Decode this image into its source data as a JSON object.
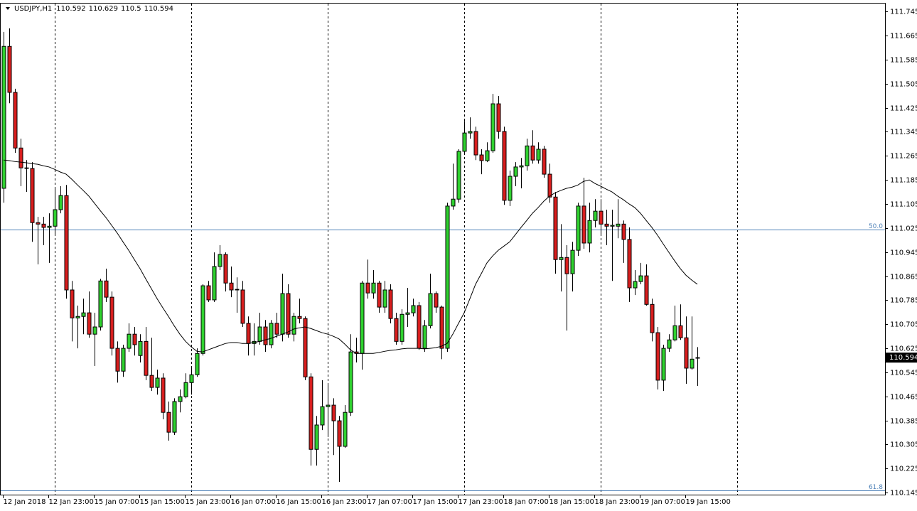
{
  "chart_data": {
    "type": "candlestick",
    "symbol": "USDJPY,H1",
    "categories": [
      "12 Jan 2018",
      null,
      null,
      null,
      null,
      null,
      null,
      null,
      "12 Jan 23:00",
      null,
      null,
      null,
      null,
      null,
      null,
      null,
      "15 Jan 07:00",
      null,
      null,
      null,
      null,
      null,
      null,
      null,
      "15 Jan 15:00",
      null,
      null,
      null,
      null,
      null,
      null,
      null,
      "15 Jan 23:00",
      null,
      null,
      null,
      null,
      null,
      null,
      null,
      "16 Jan 07:00",
      null,
      null,
      null,
      null,
      null,
      null,
      null,
      "16 Jan 15:00",
      null,
      null,
      null,
      null,
      null,
      null,
      null,
      "16 Jan 23:00",
      null,
      null,
      null,
      null,
      null,
      null,
      null,
      "17 Jan 07:00",
      null,
      null,
      null,
      null,
      null,
      null,
      null,
      "17 Jan 15:00",
      null,
      null,
      null,
      null,
      null,
      null,
      null,
      "17 Jan 23:00",
      null,
      null,
      null,
      null,
      null,
      null,
      null,
      "18 Jan 07:00",
      null,
      null,
      null,
      null,
      null,
      null,
      null,
      "18 Jan 15:00",
      null,
      null,
      null,
      null,
      null,
      null,
      null,
      "18 Jan 23:00",
      null,
      null,
      null,
      null,
      null,
      null,
      null,
      "19 Jan 07:00",
      null,
      null,
      null,
      null,
      null,
      null,
      null,
      "19 Jan 15:00",
      null,
      null
    ],
    "open": [
      111.157,
      111.629,
      111.476,
      111.291,
      111.225,
      111.223,
      111.043,
      111.038,
      111.027,
      111.031,
      111.086,
      111.133,
      110.819,
      110.726,
      110.731,
      110.743,
      110.672,
      110.696,
      110.849,
      110.795,
      110.625,
      110.549,
      110.625,
      110.672,
      110.601,
      110.648,
      110.535,
      110.495,
      110.526,
      110.412,
      110.346,
      110.448,
      110.464,
      110.511,
      110.537,
      110.608,
      110.833,
      110.786,
      110.897,
      110.937,
      110.842,
      110.819,
      110.819,
      110.708,
      110.641,
      110.648,
      110.696,
      110.637,
      110.708,
      110.672,
      110.807,
      110.672,
      110.731,
      110.724,
      110.53,
      110.289,
      110.37,
      110.431,
      110.436,
      110.384,
      110.299,
      110.412,
      110.613,
      110.608,
      110.842,
      110.809,
      110.842,
      110.762,
      110.819,
      110.724,
      110.648,
      110.738,
      110.743,
      110.767,
      110.625,
      110.7,
      110.807,
      110.762,
      110.625,
      111.098,
      111.121,
      111.28,
      111.341,
      111.346,
      111.268,
      111.249,
      111.282,
      111.438,
      111.346,
      111.117,
      111.197,
      111.228,
      111.232,
      111.298,
      111.251,
      111.287,
      111.204,
      111.128,
      110.92,
      110.927,
      110.873,
      110.951,
      111.098,
      110.975,
      111.05,
      111.081,
      111.038,
      111.031,
      111.031,
      111.038,
      110.987,
      110.826,
      110.847,
      110.866,
      110.771,
      110.677,
      110.519,
      110.625,
      110.653,
      110.7,
      110.66,
      110.559,
      110.592
    ],
    "high": [
      111.677,
      111.689,
      111.488,
      111.322,
      111.251,
      111.244,
      111.062,
      111.062,
      111.074,
      111.157,
      111.164,
      111.168,
      110.849,
      110.767,
      110.79,
      110.814,
      110.743,
      110.856,
      110.89,
      110.814,
      110.648,
      110.637,
      110.708,
      110.696,
      110.672,
      110.696,
      110.66,
      110.554,
      110.542,
      110.448,
      110.459,
      110.488,
      110.542,
      110.559,
      110.625,
      110.838,
      110.849,
      110.944,
      110.968,
      110.944,
      110.897,
      110.861,
      110.849,
      110.731,
      110.708,
      110.743,
      110.719,
      110.719,
      110.743,
      110.873,
      110.838,
      110.743,
      110.79,
      110.731,
      110.542,
      110.4,
      110.519,
      110.507,
      110.459,
      110.4,
      110.436,
      110.672,
      110.66,
      110.849,
      110.92,
      110.885,
      110.849,
      110.849,
      110.838,
      110.743,
      110.755,
      110.826,
      110.79,
      110.779,
      110.719,
      110.873,
      110.814,
      110.767,
      111.109,
      111.239,
      111.287,
      111.381,
      111.393,
      111.362,
      111.287,
      111.31,
      111.471,
      111.464,
      111.362,
      111.216,
      111.244,
      111.258,
      111.322,
      111.35,
      111.31,
      111.298,
      111.239,
      111.145,
      111.038,
      110.968,
      110.979,
      111.109,
      111.192,
      111.109,
      111.121,
      111.121,
      111.086,
      111.086,
      111.121,
      111.05,
      111.027,
      110.885,
      110.909,
      110.904,
      110.79,
      110.696,
      110.637,
      110.672,
      110.767,
      110.771,
      110.731,
      110.731,
      110.629
    ],
    "low": [
      111.109,
      111.44,
      111.275,
      111.164,
      111.145,
      110.979,
      110.904,
      110.968,
      110.909,
      111.003,
      111.074,
      110.79,
      110.648,
      110.625,
      110.672,
      110.66,
      110.566,
      110.684,
      110.779,
      110.601,
      110.511,
      110.53,
      110.613,
      110.601,
      110.578,
      110.519,
      110.483,
      110.471,
      110.389,
      110.318,
      110.337,
      110.412,
      110.459,
      110.471,
      110.53,
      110.601,
      110.779,
      110.779,
      110.885,
      110.814,
      110.795,
      110.743,
      110.696,
      110.601,
      110.601,
      110.637,
      110.613,
      110.625,
      110.66,
      110.648,
      110.66,
      110.648,
      110.708,
      110.519,
      110.235,
      110.235,
      110.353,
      110.33,
      110.27,
      110.181,
      110.294,
      110.4,
      110.578,
      110.554,
      110.79,
      110.79,
      110.743,
      110.743,
      110.708,
      110.637,
      110.637,
      110.696,
      110.731,
      110.62,
      110.613,
      110.691,
      110.743,
      110.589,
      110.613,
      111.086,
      111.109,
      111.268,
      111.322,
      111.251,
      111.204,
      111.244,
      111.275,
      111.322,
      111.102,
      111.098,
      111.164,
      111.157,
      111.216,
      111.239,
      111.239,
      111.192,
      111.109,
      110.873,
      110.814,
      110.684,
      110.814,
      110.932,
      110.956,
      110.944,
      111.027,
      111.003,
      110.968,
      110.849,
      110.991,
      110.909,
      110.779,
      110.802,
      110.838,
      110.767,
      110.648,
      110.488,
      110.483,
      110.613,
      110.648,
      110.653,
      110.507,
      110.554,
      110.5
    ],
    "close": [
      111.629,
      111.476,
      111.291,
      111.225,
      111.223,
      111.043,
      111.038,
      111.027,
      111.031,
      111.086,
      111.133,
      110.819,
      110.726,
      110.731,
      110.743,
      110.672,
      110.696,
      110.849,
      110.795,
      110.625,
      110.549,
      110.625,
      110.672,
      110.637,
      110.648,
      110.535,
      110.495,
      110.526,
      110.412,
      110.346,
      110.448,
      110.464,
      110.511,
      110.537,
      110.608,
      110.833,
      110.786,
      110.897,
      110.937,
      110.842,
      110.819,
      110.821,
      110.708,
      110.641,
      110.648,
      110.696,
      110.637,
      110.708,
      110.672,
      110.807,
      110.672,
      110.731,
      110.724,
      110.53,
      110.289,
      110.37,
      110.431,
      110.436,
      110.384,
      110.299,
      110.412,
      110.613,
      110.608,
      110.842,
      110.809,
      110.842,
      110.762,
      110.819,
      110.724,
      110.648,
      110.738,
      110.743,
      110.767,
      110.625,
      110.7,
      110.807,
      110.762,
      110.625,
      111.098,
      111.121,
      111.28,
      111.341,
      111.346,
      111.268,
      111.249,
      111.282,
      111.438,
      111.346,
      111.117,
      111.197,
      111.228,
      111.232,
      111.298,
      111.251,
      111.287,
      111.204,
      111.128,
      110.92,
      110.927,
      110.873,
      110.951,
      111.098,
      110.975,
      111.05,
      111.081,
      111.038,
      111.031,
      111.034,
      111.038,
      110.987,
      110.826,
      110.847,
      110.866,
      110.771,
      110.677,
      110.519,
      110.625,
      110.653,
      110.7,
      110.66,
      110.559,
      110.589,
      110.594
    ],
    "up_color": "#2fd12f",
    "down_color": "#d81e1e",
    "outline_color": "#000000",
    "moving_average": {
      "color": "#000000",
      "values": [
        111.251,
        111.249,
        111.246,
        111.244,
        111.242,
        111.239,
        111.237,
        111.232,
        111.228,
        111.22,
        111.211,
        111.204,
        111.187,
        111.168,
        111.15,
        111.131,
        111.107,
        111.083,
        111.06,
        111.034,
        111.008,
        110.979,
        110.951,
        110.92,
        110.89,
        110.856,
        110.823,
        110.79,
        110.76,
        110.731,
        110.7,
        110.672,
        110.648,
        110.63,
        110.615,
        110.613,
        110.62,
        110.627,
        110.634,
        110.641,
        110.644,
        110.644,
        110.641,
        110.641,
        110.644,
        110.648,
        110.653,
        110.658,
        110.665,
        110.672,
        110.679,
        110.689,
        110.693,
        110.696,
        110.691,
        110.684,
        110.677,
        110.672,
        110.665,
        110.656,
        110.639,
        110.62,
        110.608,
        110.608,
        110.608,
        110.608,
        110.611,
        110.615,
        110.618,
        110.62,
        110.623,
        110.625,
        110.625,
        110.625,
        110.623,
        110.625,
        110.627,
        110.632,
        110.641,
        110.672,
        110.708,
        110.743,
        110.79,
        110.838,
        110.873,
        110.909,
        110.932,
        110.951,
        110.965,
        110.979,
        111.003,
        111.027,
        111.05,
        111.074,
        111.093,
        111.114,
        111.131,
        111.142,
        111.15,
        111.157,
        111.161,
        111.168,
        111.18,
        111.185,
        111.173,
        111.164,
        111.154,
        111.145,
        111.131,
        111.119,
        111.105,
        111.093,
        111.074,
        111.05,
        111.027,
        111.001,
        110.972,
        110.944,
        110.916,
        110.89,
        110.868,
        110.852,
        110.838
      ]
    },
    "levels": [
      {
        "name": "50.0",
        "value": 111.02,
        "color": "#4f82b8"
      },
      {
        "name": "61.8",
        "value": 110.152,
        "color": "#4f82b8"
      }
    ],
    "ylim": [
      110.136,
      111.769
    ],
    "yticks": [
      111.745,
      111.665,
      111.585,
      111.505,
      111.425,
      111.345,
      111.265,
      111.185,
      111.105,
      111.025,
      110.945,
      110.865,
      110.785,
      110.705,
      110.625,
      110.545,
      110.465,
      110.385,
      110.305,
      110.225,
      110.145
    ]
  }
}
